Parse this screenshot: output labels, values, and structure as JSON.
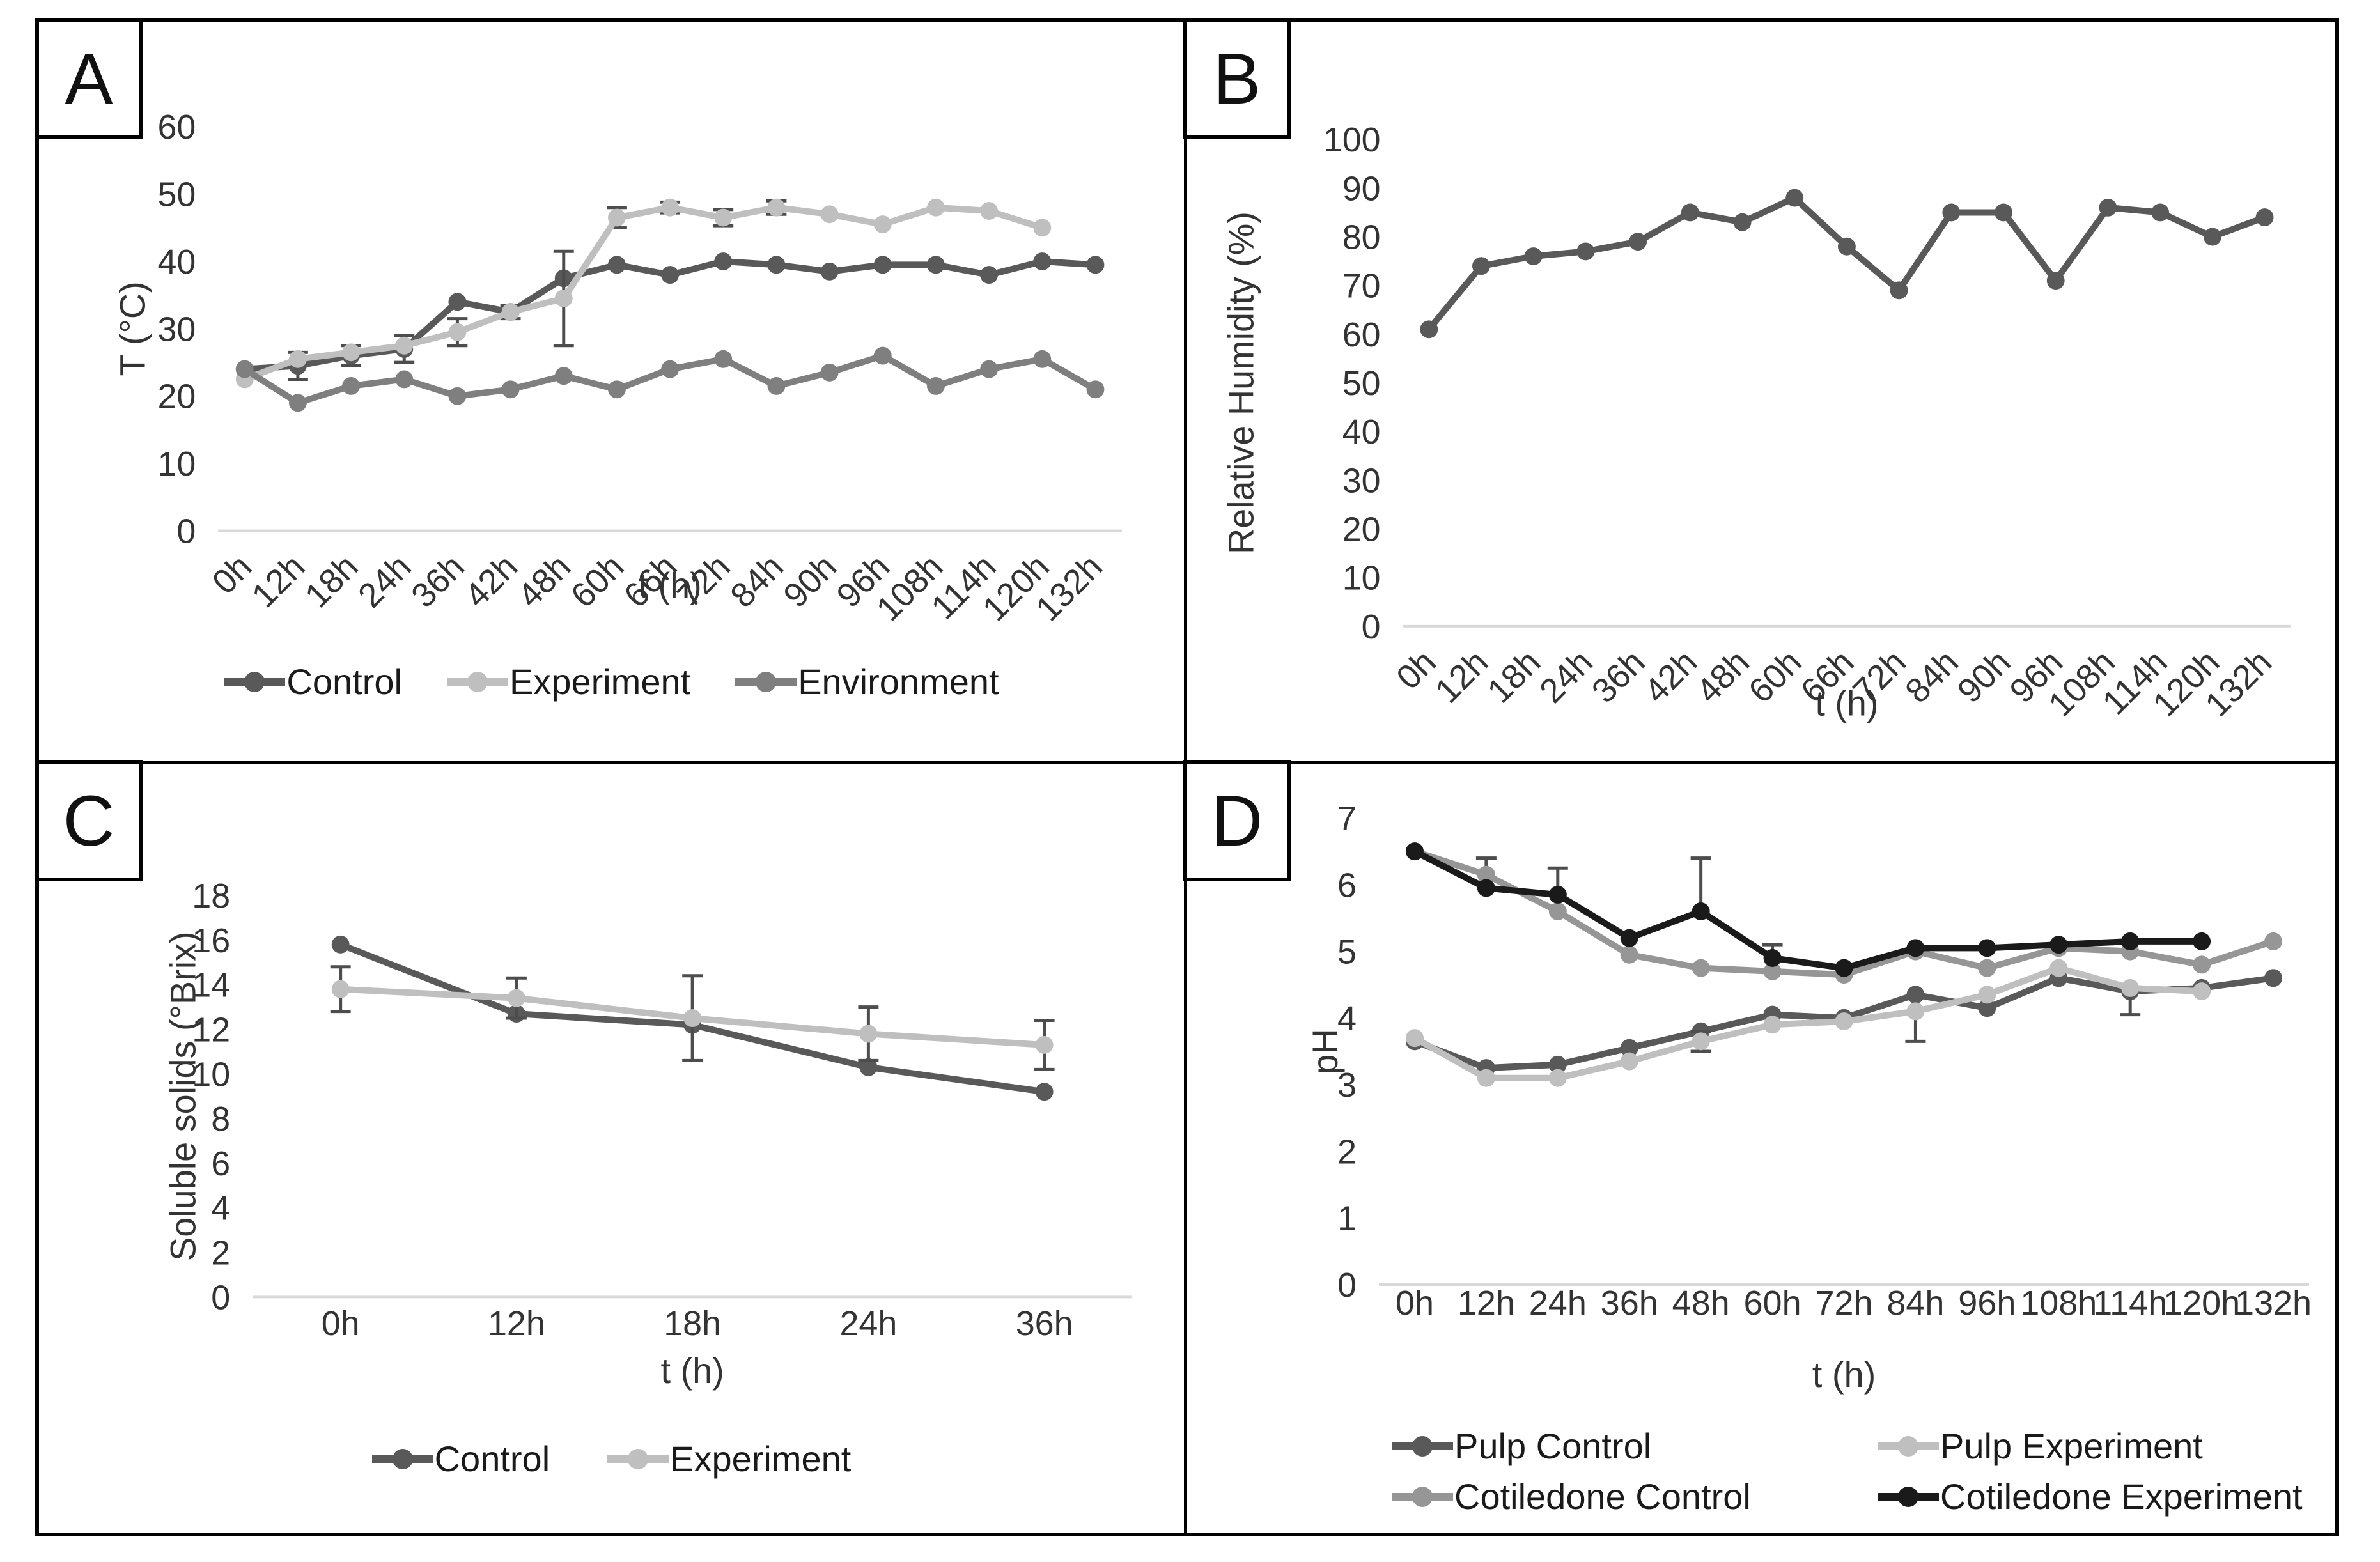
{
  "figure": {
    "border_color": "#000000",
    "background": "#ffffff",
    "baseline_color": "#d9d9d9",
    "error_bar_color": "#4d4d4d",
    "text_color": "#333333"
  },
  "chart_data": {
    "type": "line",
    "panels": [
      {
        "label": "A",
        "y_axis": {
          "title": "T (°C)",
          "min": 0,
          "max": 60,
          "step": 10
        },
        "x_axis": {
          "title": "t (h)",
          "rotated": true,
          "categories": [
            "0h",
            "12h",
            "18h",
            "24h",
            "36h",
            "42h",
            "48h",
            "60h",
            "66h",
            "72h",
            "84h",
            "90h",
            "96h",
            "108h",
            "114h",
            "120h",
            "132h"
          ]
        },
        "legend_position": "bottom-row",
        "series": [
          {
            "name": "Control",
            "color": "#595959",
            "values": [
              24,
              24.5,
              26,
              27,
              34,
              32.5,
              37.5,
              39.5,
              38,
              40,
              39.5,
              38.5,
              39.5,
              39.5,
              38,
              40,
              39.5
            ],
            "errors": [
              null,
              2,
              1.5,
              2,
              null,
              null,
              null,
              null,
              null,
              null,
              null,
              null,
              null,
              null,
              null,
              null,
              null
            ]
          },
          {
            "name": "Experiment",
            "color": "#bfbfbf",
            "values": [
              22.5,
              25.5,
              26.5,
              27.5,
              29.5,
              32.5,
              34.5,
              46.5,
              48,
              46.5,
              48,
              47,
              45.5,
              48,
              47.5,
              45,
              null
            ],
            "errors": [
              null,
              null,
              null,
              null,
              2,
              1,
              7,
              1.5,
              0.8,
              1.2,
              1,
              null,
              null,
              null,
              null,
              null,
              null
            ]
          },
          {
            "name": "Environment",
            "color": "#7f7f7f",
            "values": [
              24,
              19,
              21.5,
              22.5,
              20,
              21,
              23,
              21,
              24,
              25.5,
              21.5,
              23.5,
              26,
              21.5,
              24,
              25.5,
              21
            ],
            "errors": []
          }
        ]
      },
      {
        "label": "B",
        "y_axis": {
          "title": "Relative Humidity (%)",
          "min": 0,
          "max": 100,
          "step": 10
        },
        "x_axis": {
          "title": "t (h)",
          "rotated": true,
          "categories": [
            "0h",
            "12h",
            "18h",
            "24h",
            "36h",
            "42h",
            "48h",
            "60h",
            "66h",
            "72h",
            "84h",
            "90h",
            "96h",
            "108h",
            "114h",
            "120h",
            "132h"
          ]
        },
        "legend_position": "none",
        "series": [
          {
            "name": "Relative Humidity",
            "color": "#595959",
            "values": [
              61,
              74,
              76,
              77,
              79,
              85,
              83,
              88,
              78,
              69,
              85,
              85,
              71,
              86,
              85,
              80,
              84
            ],
            "errors": []
          }
        ]
      },
      {
        "label": "C",
        "y_axis": {
          "title": "Soluble solids (°Brix)",
          "min": 0,
          "max": 18,
          "step": 2
        },
        "x_axis": {
          "title": "t (h)",
          "rotated": false,
          "categories": [
            "0h",
            "12h",
            "18h",
            "24h",
            "36h"
          ]
        },
        "legend_position": "bottom-row",
        "series": [
          {
            "name": "Control",
            "color": "#595959",
            "values": [
              15.8,
              12.7,
              12.2,
              10.3,
              9.2
            ],
            "errors": []
          },
          {
            "name": "Experiment",
            "color": "#bfbfbf",
            "values": [
              13.8,
              13.4,
              12.5,
              11.8,
              11.3
            ],
            "errors": [
              1.0,
              0.9,
              1.9,
              1.2,
              1.1
            ]
          }
        ]
      },
      {
        "label": "D",
        "y_axis": {
          "title": "pH",
          "min": 0,
          "max": 7,
          "step": 1
        },
        "x_axis": {
          "title": "t (h)",
          "rotated": false,
          "categories": [
            "0h",
            "12h",
            "24h",
            "36h",
            "48h",
            "60h",
            "72h",
            "84h",
            "96h",
            "108h",
            "114h",
            "120h",
            "132h"
          ]
        },
        "legend_position": "bottom-grid",
        "series": [
          {
            "name": "Pulp Control",
            "color": "#595959",
            "values": [
              3.65,
              3.25,
              3.3,
              3.55,
              3.8,
              4.05,
              4.0,
              4.35,
              4.15,
              4.6,
              4.4,
              4.45,
              4.6
            ],
            "errors": []
          },
          {
            "name": "Pulp Experiment",
            "color": "#bfbfbf",
            "values": [
              3.7,
              3.1,
              3.1,
              3.35,
              3.65,
              3.9,
              3.95,
              4.1,
              4.35,
              4.75,
              4.45,
              4.4,
              null
            ],
            "errors": [
              null,
              null,
              null,
              null,
              0.15,
              null,
              null,
              {
                "up": 0,
                "down": 0.45
              },
              null,
              null,
              {
                "up": 0,
                "down": 0.4
              },
              null,
              null
            ]
          },
          {
            "name": "Cotiledone Control",
            "color": "#969696",
            "values": [
              6.5,
              6.15,
              5.6,
              4.95,
              4.75,
              4.7,
              4.65,
              5.0,
              4.75,
              5.05,
              5.0,
              4.8,
              5.15
            ],
            "errors": [
              null,
              {
                "up": 0.25,
                "down": 0
              },
              null,
              null,
              null,
              null,
              null,
              null,
              null,
              null,
              null,
              null,
              null
            ]
          },
          {
            "name": "Cotiledone Experiment",
            "color": "#1a1a1a",
            "values": [
              6.5,
              5.95,
              5.85,
              5.2,
              5.6,
              4.9,
              4.75,
              5.05,
              5.05,
              5.1,
              5.15,
              5.15,
              null
            ],
            "errors": [
              null,
              null,
              {
                "up": 0.4,
                "down": 0
              },
              null,
              {
                "up": 0.8,
                "down": 0
              },
              {
                "up": 0.2,
                "down": 0
              },
              null,
              null,
              null,
              null,
              null,
              null,
              null
            ]
          }
        ]
      }
    ]
  }
}
